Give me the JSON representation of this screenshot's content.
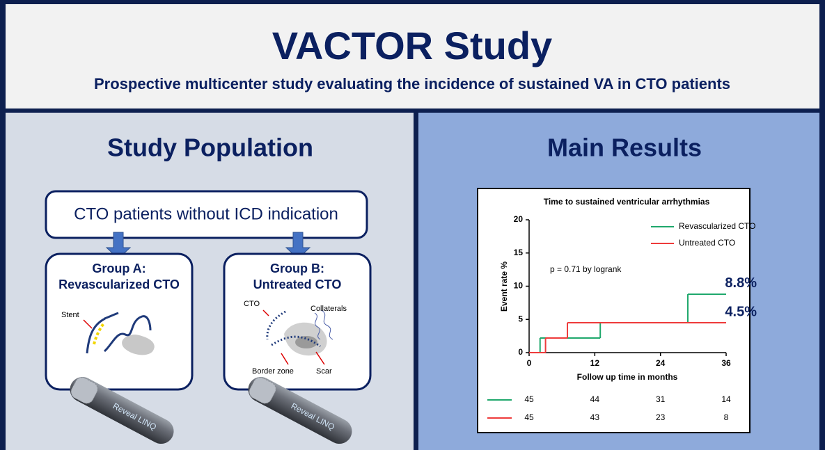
{
  "header": {
    "title": "VACTOR Study",
    "subtitle": "Prospective multicenter study evaluating the incidence of sustained VA in CTO patients"
  },
  "population": {
    "title": "Study Population",
    "box": "CTO patients without ICD indication",
    "groups": [
      {
        "label": "Group A:",
        "name": "Revascularized CTO",
        "annotations": [
          "Stent"
        ]
      },
      {
        "label": "Group B:",
        "name": "Untreated CTO",
        "annotations": [
          "CTO",
          "Collaterals",
          "Border zone",
          "Scar"
        ]
      }
    ],
    "device": "Reveal LINQ"
  },
  "results": {
    "title": "Main Results"
  },
  "chart_data": {
    "type": "step",
    "title": "Time to sustained ventricular arrhythmias",
    "x_label": "Follow up time in months",
    "y_label": "Event rate %",
    "annotation": "p = 0.71 by logrank",
    "xlim": [
      0,
      36
    ],
    "xticks": [
      0,
      12,
      24,
      36
    ],
    "ylim": [
      0,
      20
    ],
    "yticks": [
      0,
      5,
      10,
      15,
      20
    ],
    "series": [
      {
        "name": "Revascularized CTO",
        "color": "#1fa86c",
        "x": [
          0,
          2,
          13,
          29,
          36
        ],
        "values": [
          0,
          2.2,
          4.5,
          8.8,
          8.8
        ],
        "value_labels": [
          null,
          null,
          null,
          null,
          "8.8%"
        ],
        "at_risk": [
          45,
          44,
          31,
          14
        ]
      },
      {
        "name": "Untreated CTO",
        "color": "#ee3b3b",
        "x": [
          0,
          3,
          7,
          36
        ],
        "values": [
          0,
          2.2,
          4.5,
          4.5
        ],
        "value_labels": [
          null,
          null,
          null,
          "4.5%"
        ],
        "at_risk": [
          45,
          43,
          23,
          8
        ]
      }
    ]
  }
}
